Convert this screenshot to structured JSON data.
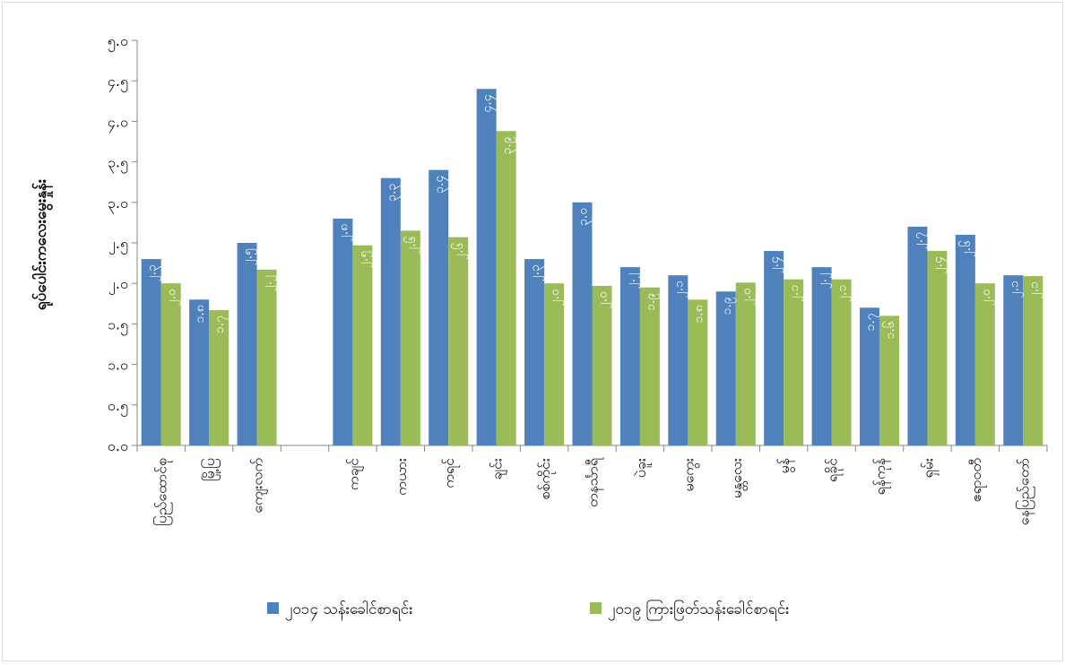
{
  "chart_data": {
    "type": "bar",
    "title": "",
    "xlabel": "",
    "ylabel": "ရုပ်ပေါင်းကလေးမွေးနှုန်း",
    "ylim": [
      0,
      5.0
    ],
    "yticks": [
      "၀.၀",
      "၀.၅",
      "၁.၀",
      "၁.၅",
      "၂.၀",
      "၂.၅",
      "၃.၀",
      "၃.၅",
      "၄.၀",
      "၄.၅",
      "၅.၀"
    ],
    "grid": false,
    "legend_position": "bottom",
    "categories": [
      "ပြည်ထောင်စု",
      "မြို့ပြ",
      "ကျေးလက်",
      "",
      "ကချင်",
      "ကယား",
      "ကရင်",
      "ချင်း",
      "စစ်ကိုင်း",
      "တနင်္သာရီ",
      "ပဲခူး",
      "မကွေး",
      "မန္တလေး",
      "မွန်",
      "ရခိုင်",
      "ရန်ကုန်",
      "ရှမ်း",
      "ဧရာဝတီ",
      "နေပြည်တော်"
    ],
    "series": [
      {
        "name": "၂၀၁၄ သန်းခေါင်စာရင်း",
        "color": "#4f81bd",
        "values": [
          2.3,
          1.8,
          2.5,
          null,
          2.8,
          3.3,
          3.4,
          4.4,
          2.3,
          3.0,
          2.2,
          2.1,
          1.9,
          2.4,
          2.2,
          1.7,
          2.7,
          2.6,
          2.1
        ],
        "labels": [
          "၂.၃",
          "၁.၈",
          "၂.၅",
          "",
          "၂.၈",
          "၃.၃",
          "၃.၄",
          "၄.၄",
          "၂.၃",
          "၃.၀",
          "၂.၂",
          "၂.၁",
          "၁.၉",
          "၂.၄",
          "၂.၂",
          "၁.၇",
          "၂.၇",
          "၂.၆",
          "၂.၁"
        ]
      },
      {
        "name": "၂၀၁၉ ကြားဖြတ်သန်းခေါင်စာရင်း",
        "color": "#9bbb59",
        "values": [
          2.0,
          1.67,
          2.17,
          null,
          2.47,
          2.65,
          2.57,
          3.88,
          2.0,
          1.97,
          1.95,
          1.8,
          2.01,
          2.05,
          2.05,
          1.6,
          2.4,
          2.0,
          2.09
        ],
        "labels": [
          "၂.၀",
          "၁.၇",
          "၂.၂",
          "",
          "၂.၅",
          "၂.၆",
          "၂.၆",
          "၃.၉",
          "၂.၀",
          "၂.၀",
          "၁.၉",
          "၁.၈",
          "၂.၀",
          "၂.၁",
          "၂.၁",
          "၁.၆",
          "၂.၄",
          "၂.၀",
          "၂.၁"
        ]
      }
    ]
  }
}
